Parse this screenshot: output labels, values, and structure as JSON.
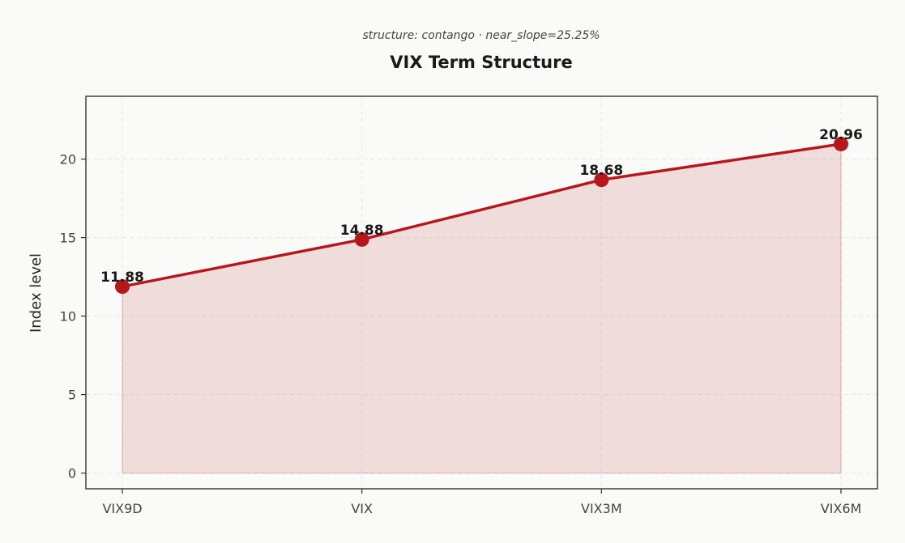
{
  "chart_data": {
    "type": "line",
    "title": "VIX Term Structure",
    "subtitle": "structure: contango · near_slope=25.25%",
    "xlabel": "",
    "ylabel": "Index level",
    "categories": [
      "VIX9D",
      "VIX",
      "VIX3M",
      "VIX6M"
    ],
    "series": [
      {
        "values": [
          11.88,
          14.88,
          18.68,
          20.96
        ],
        "labels": [
          "11.88",
          "14.88",
          "18.68",
          "20.96"
        ]
      }
    ],
    "ylim": [
      -1,
      24
    ],
    "yticks": [
      0,
      5,
      10,
      15,
      20
    ],
    "grid": true,
    "area_fill": true,
    "legend": "none",
    "colors": {
      "line": "#b5171a",
      "marker": "#b5171a",
      "fill": "#b5171a",
      "grid": "#e6e6e6",
      "axes": "#333333"
    }
  }
}
